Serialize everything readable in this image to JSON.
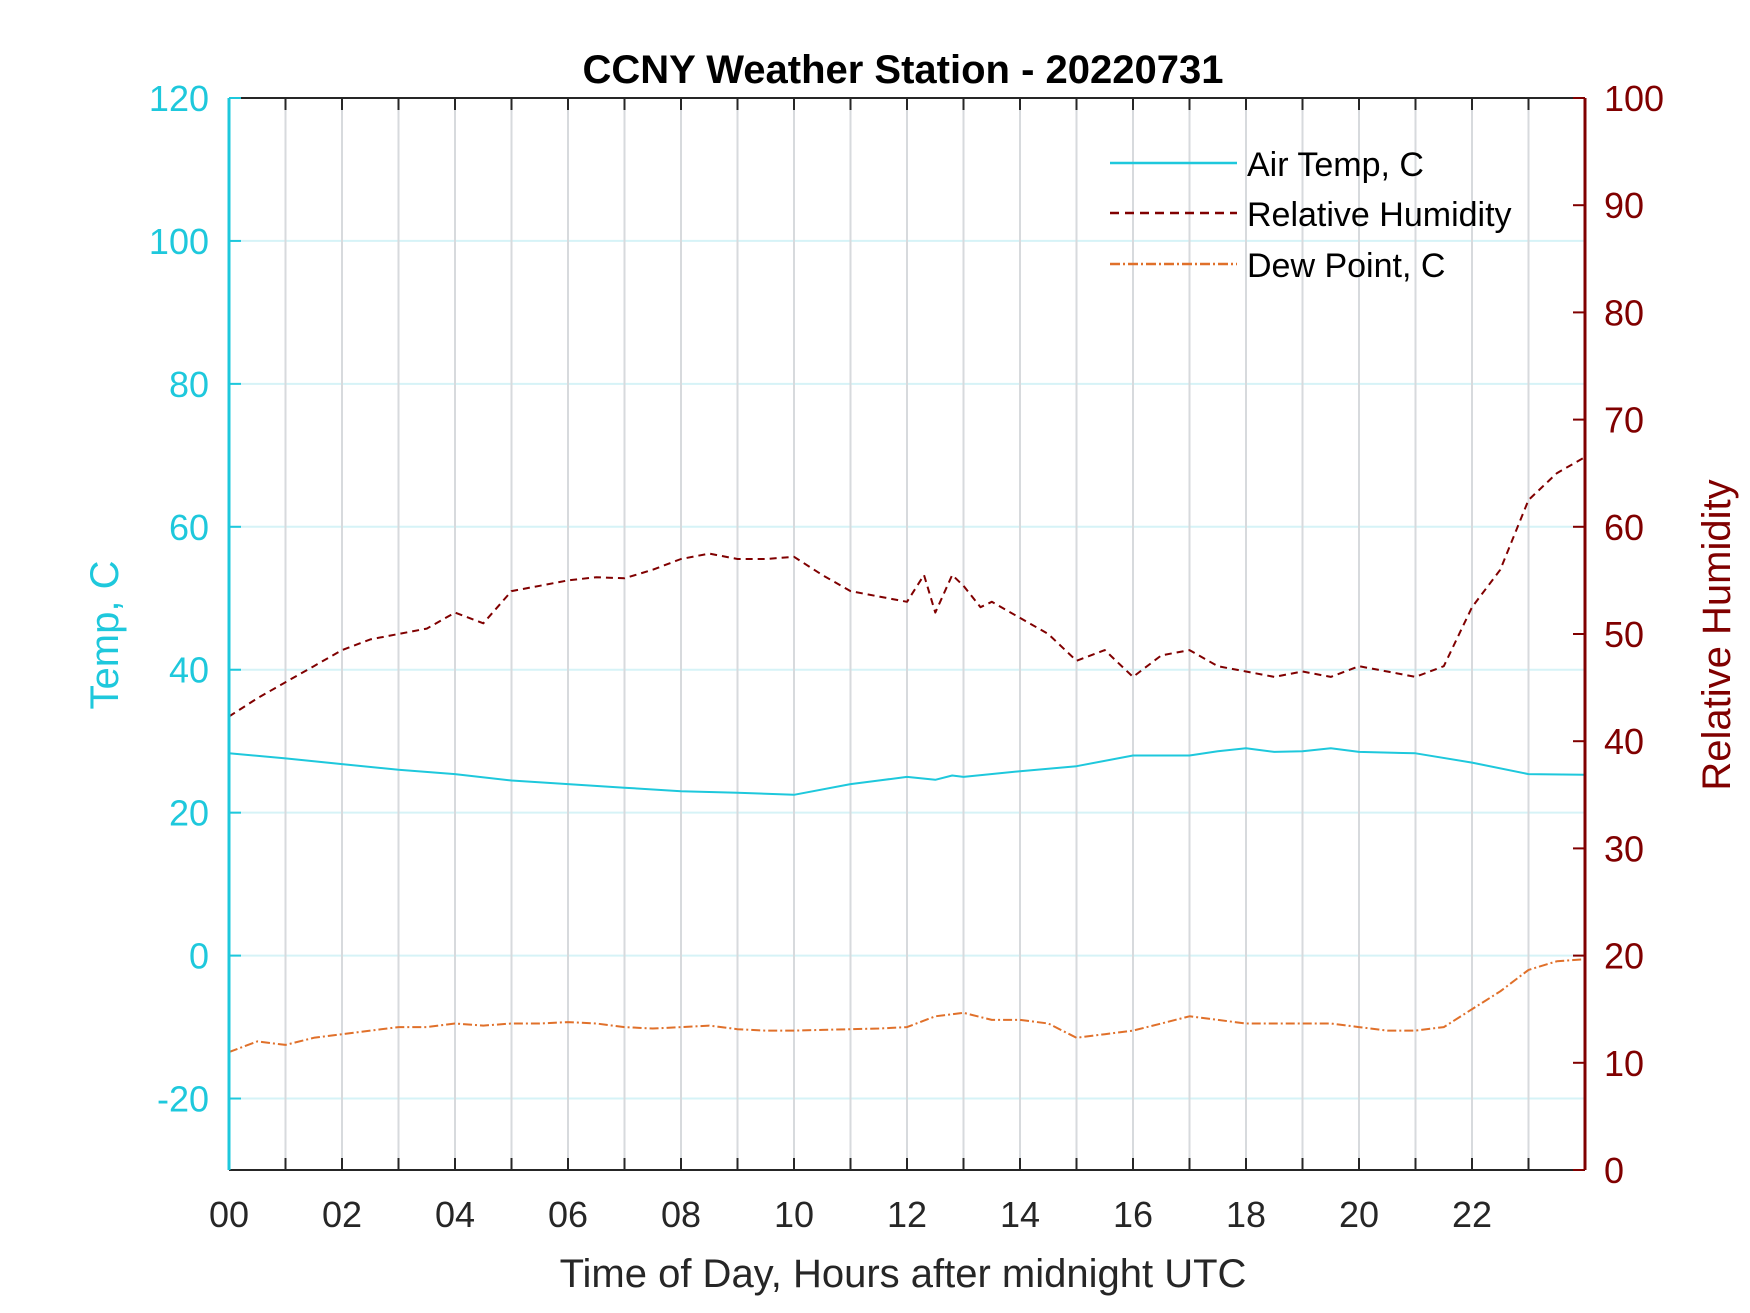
{
  "chart_data": {
    "type": "line",
    "title": "CCNY Weather Station - 20220731",
    "xlabel": "Time of Day, Hours after midnight UTC",
    "ylabel_left": "Temp, C",
    "ylabel_right": "Relative Humidity",
    "xlim": [
      0,
      24
    ],
    "ylim_left": [
      -30,
      120
    ],
    "ylim_right": [
      0,
      100
    ],
    "x_ticks": [
      "00",
      "02",
      "04",
      "06",
      "08",
      "10",
      "12",
      "14",
      "16",
      "18",
      "20",
      "22"
    ],
    "y_left_ticks": [
      "-20",
      "0",
      "20",
      "40",
      "60",
      "80",
      "100",
      "120"
    ],
    "y_right_ticks": [
      "0",
      "10",
      "20",
      "30",
      "40",
      "50",
      "60",
      "70",
      "80",
      "90",
      "100"
    ],
    "grid": "on",
    "legend_position": "top-right",
    "colors": {
      "air_temp": "#1ec8dc",
      "humidity": "#800000",
      "dew_point": "#e0702a",
      "left_axis": "#1ec8dc",
      "right_axis": "#800000",
      "vgrid": "#d7dadd",
      "hgrid": "#d6f3f7"
    },
    "series": [
      {
        "name": "Air Temp, C",
        "axis": "left",
        "style": "solid",
        "x": [
          0,
          1,
          2,
          3,
          4,
          5,
          6,
          7,
          8,
          9,
          10,
          11,
          11.5,
          12,
          12.5,
          12.8,
          13,
          14,
          15,
          16,
          16.5,
          17,
          17.5,
          18,
          18.5,
          19,
          19.5,
          20,
          21,
          22,
          23,
          24
        ],
        "y": [
          28.3,
          27.6,
          26.8,
          26,
          25.4,
          24.5,
          24,
          23.5,
          23,
          22.8,
          22.5,
          24,
          24.5,
          25,
          24.6,
          25.2,
          25,
          25.8,
          26.5,
          28,
          28,
          28,
          28.6,
          29,
          28.5,
          28.6,
          29,
          28.5,
          28.3,
          27,
          25.4,
          25.3
        ]
      },
      {
        "name": "Relative Humidity",
        "axis": "right",
        "style": "dashed",
        "x": [
          0,
          0.5,
          1,
          1.5,
          2,
          2.5,
          3,
          3.5,
          4,
          4.5,
          5,
          5.5,
          6,
          6.5,
          7,
          7.5,
          8,
          8.5,
          9,
          9.5,
          10,
          10.5,
          11,
          11.5,
          12,
          12.3,
          12.5,
          12.8,
          13,
          13.3,
          13.5,
          14,
          14.5,
          15,
          15.5,
          16,
          16.5,
          17,
          17.5,
          18,
          18.5,
          19,
          19.5,
          20,
          20.5,
          21,
          21.5,
          22,
          22.5,
          23,
          23.5,
          24
        ],
        "y": [
          42.3,
          44,
          45.5,
          47,
          48.5,
          49.5,
          50,
          50.5,
          52,
          51,
          54,
          54.5,
          55,
          55.3,
          55.2,
          56,
          57,
          57.5,
          57,
          57,
          57.2,
          55.5,
          54,
          53.5,
          53,
          55.5,
          52,
          55.5,
          54.5,
          52.5,
          53,
          51.5,
          50,
          47.5,
          48.5,
          46,
          48,
          48.5,
          47,
          46.5,
          46,
          46.5,
          46,
          47,
          46.5,
          46,
          47,
          52.5,
          56,
          62.5,
          65,
          66.5
        ]
      },
      {
        "name": "Dew Point, C",
        "axis": "left",
        "style": "dashdot",
        "x": [
          0,
          0.5,
          1,
          1.5,
          2,
          2.5,
          3,
          3.5,
          4,
          4.5,
          5,
          5.5,
          6,
          6.5,
          7,
          7.5,
          8,
          8.5,
          9,
          9.5,
          10,
          10.5,
          11,
          11.5,
          12,
          12.5,
          13,
          13.5,
          14,
          14.5,
          15,
          15.5,
          16,
          16.5,
          17,
          17.5,
          18,
          18.5,
          19,
          19.5,
          20,
          20.5,
          21,
          21.5,
          22,
          22.5,
          23,
          23.5,
          24
        ],
        "y": [
          -13.5,
          -12,
          -12.5,
          -11.5,
          -11,
          -10.5,
          -10,
          -10,
          -9.5,
          -9.8,
          -9.5,
          -9.5,
          -9.3,
          -9.5,
          -10,
          -10.2,
          -10,
          -9.8,
          -10.3,
          -10.5,
          -10.5,
          -10.4,
          -10.3,
          -10.2,
          -10,
          -8.5,
          -8,
          -9,
          -9,
          -9.5,
          -11.5,
          -11,
          -10.5,
          -9.5,
          -8.5,
          -9,
          -9.5,
          -9.5,
          -9.5,
          -9.5,
          -10,
          -10.5,
          -10.5,
          -10,
          -7.5,
          -5,
          -2,
          -0.8,
          -0.5
        ]
      }
    ]
  }
}
